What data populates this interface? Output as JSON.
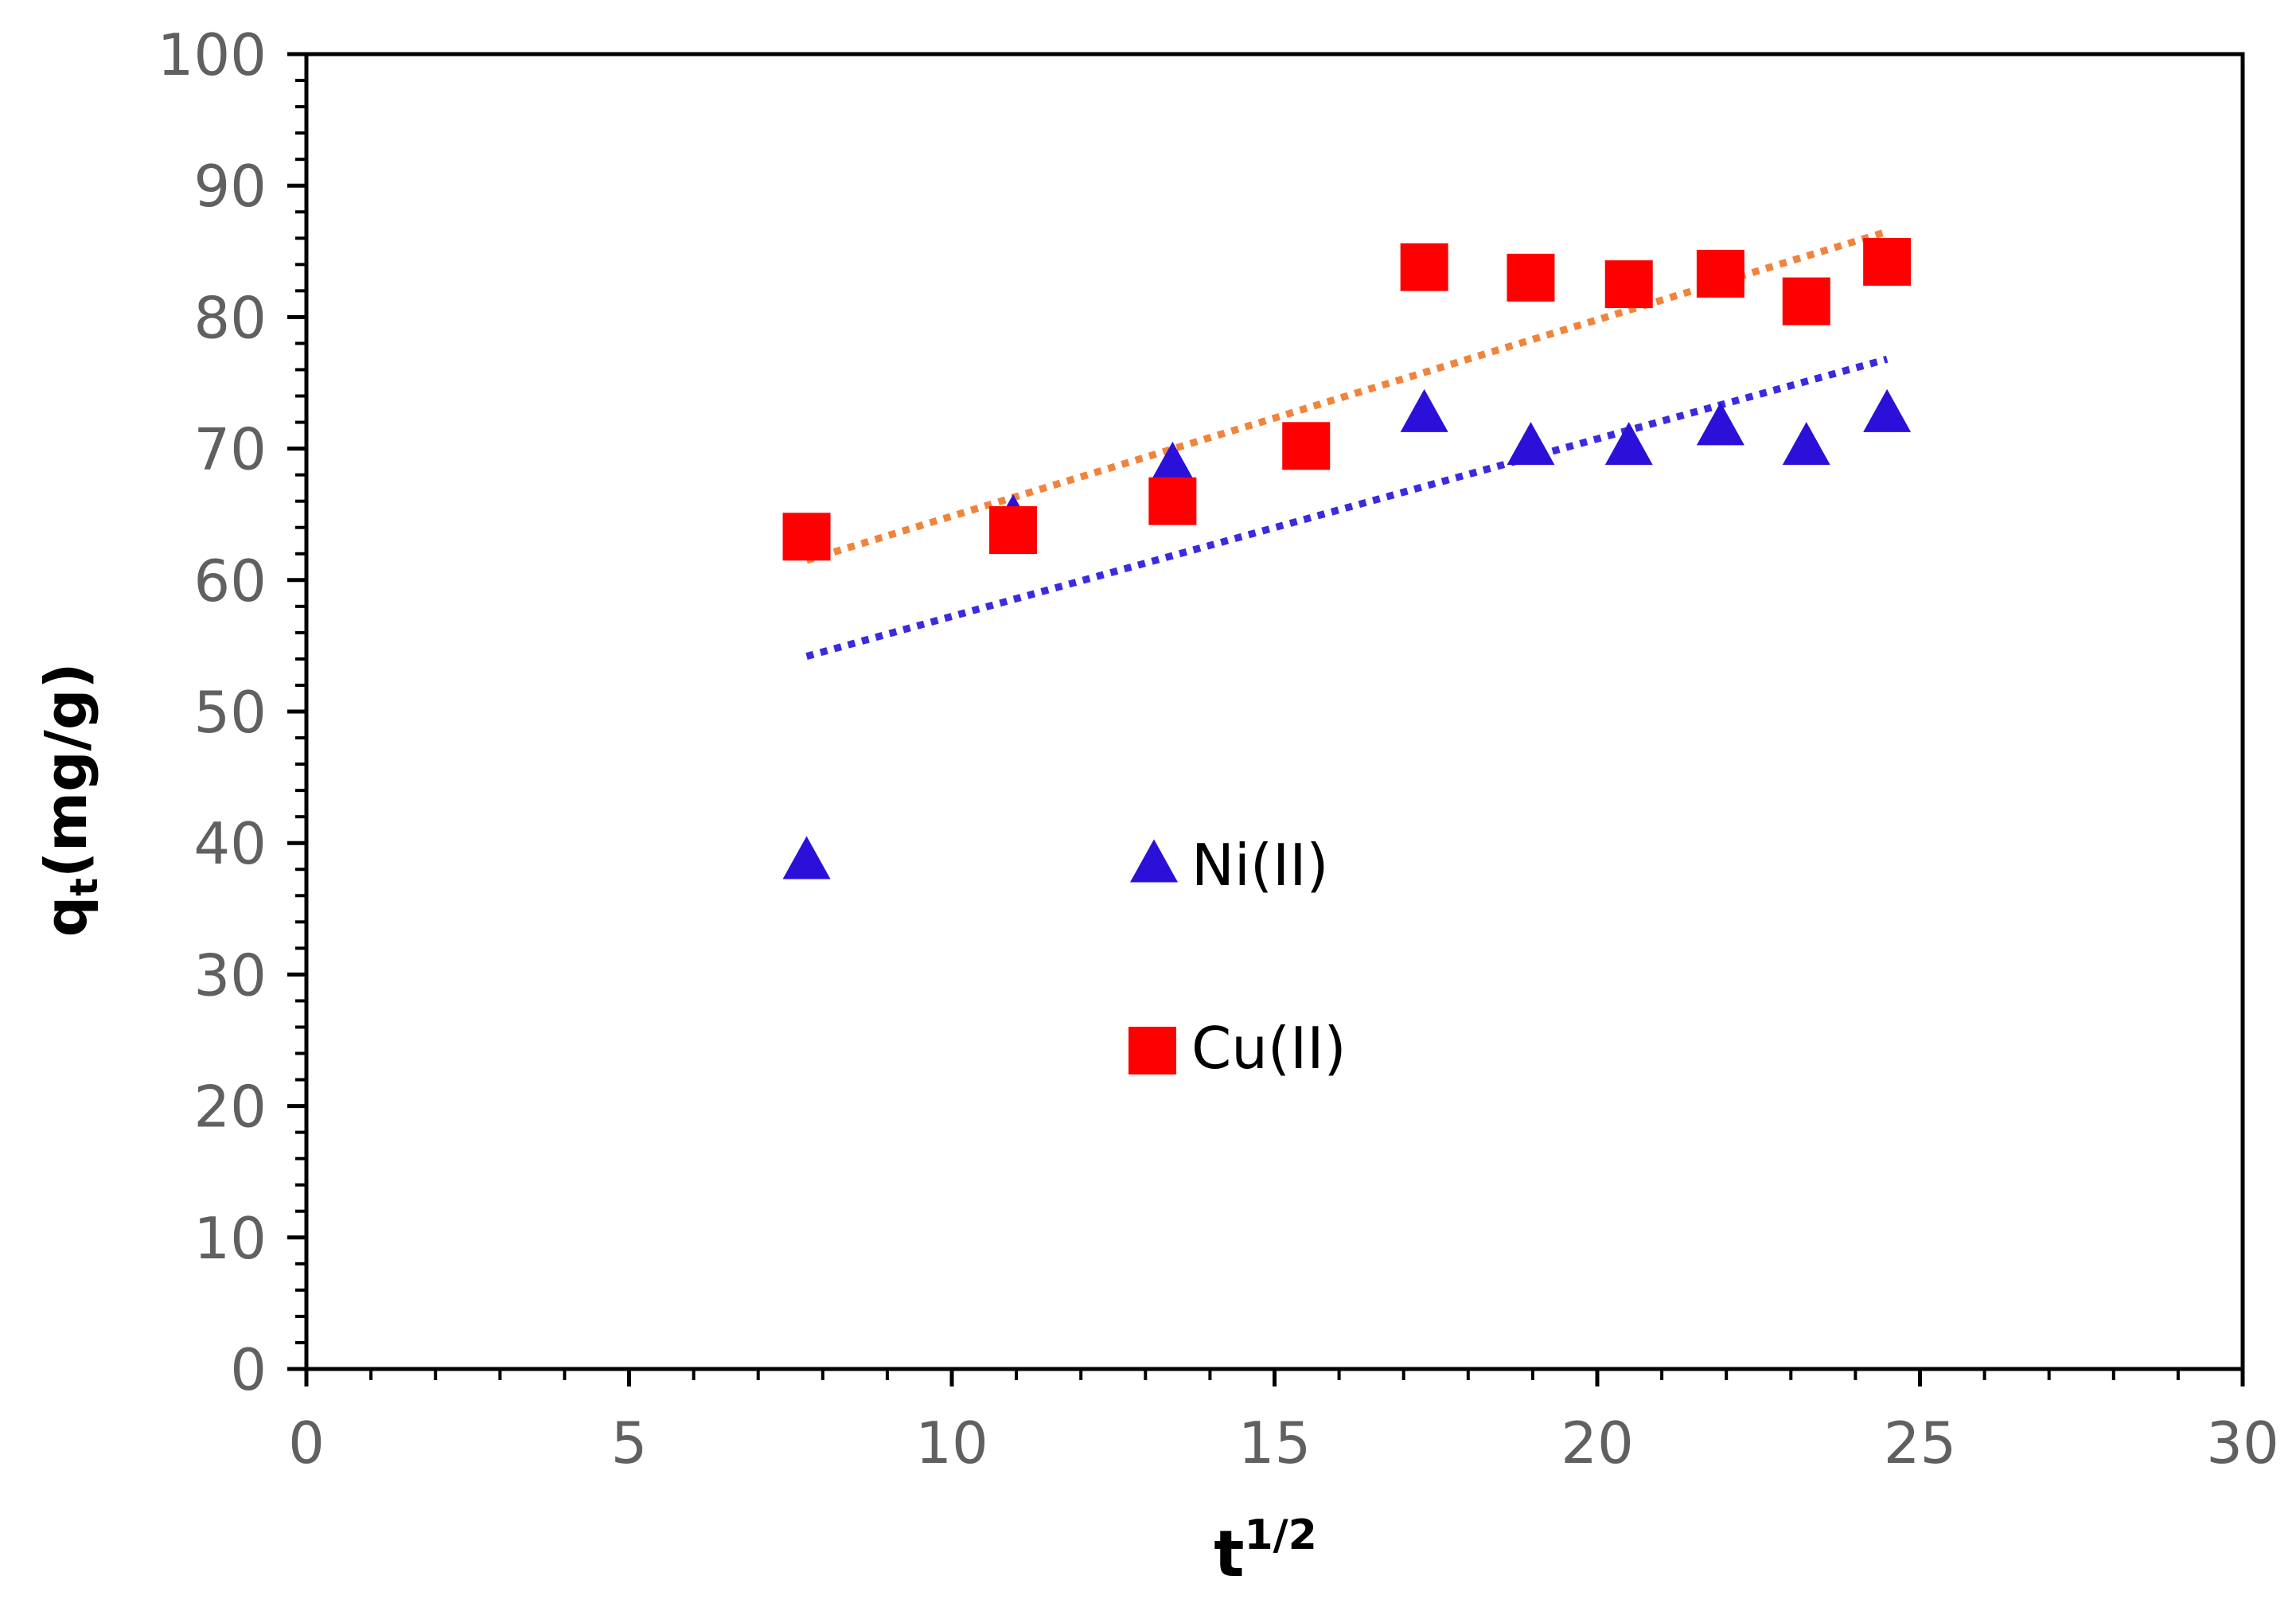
{
  "chart_data": {
    "type": "scatter",
    "title": "",
    "xlabel": {
      "base": "t",
      "superscript": "1/2"
    },
    "ylabel": {
      "base": "q",
      "subscript": "t",
      "unit": "(mg/g)"
    },
    "xlim": [
      0,
      30
    ],
    "ylim": [
      0,
      100
    ],
    "x_major_ticks": [
      0,
      5,
      10,
      15,
      20,
      25,
      30
    ],
    "y_major_ticks": [
      0,
      10,
      20,
      30,
      40,
      50,
      60,
      70,
      80,
      90,
      100
    ],
    "x_tick_labels": [
      "0",
      "5",
      "10",
      "15",
      "20",
      "25",
      "30"
    ],
    "y_tick_labels": [
      "0",
      "10",
      "20",
      "30",
      "40",
      "50",
      "60",
      "70",
      "80",
      "90",
      "100"
    ],
    "grid": false,
    "legend_position": "center",
    "series": [
      {
        "name": "Ni(II)",
        "marker": "triangle",
        "color": "#2a10d8",
        "x": [
          7.75,
          10.95,
          13.42,
          15.49,
          17.32,
          18.97,
          20.49,
          21.91,
          23.24,
          24.49
        ],
        "y": [
          38.5,
          64.5,
          68.5,
          70.0,
          72.5,
          70.0,
          70.0,
          71.5,
          70.0,
          72.5
        ],
        "trendline": {
          "style": "dotted",
          "color": "#3b2ae0",
          "x": [
            7.75,
            24.49
          ],
          "y": [
            54.2,
            76.8
          ]
        }
      },
      {
        "name": "Cu(II)",
        "marker": "square",
        "color": "#ff0000",
        "x": [
          7.75,
          10.95,
          13.42,
          15.49,
          17.32,
          18.97,
          20.49,
          21.91,
          23.24,
          24.49
        ],
        "y": [
          63.3,
          63.8,
          66.0,
          70.2,
          83.8,
          83.0,
          82.5,
          83.3,
          81.2,
          84.2
        ],
        "trendline": {
          "style": "dotted",
          "color": "#f0843c",
          "x": [
            7.75,
            24.49
          ],
          "y": [
            61.5,
            86.5
          ]
        }
      }
    ]
  }
}
